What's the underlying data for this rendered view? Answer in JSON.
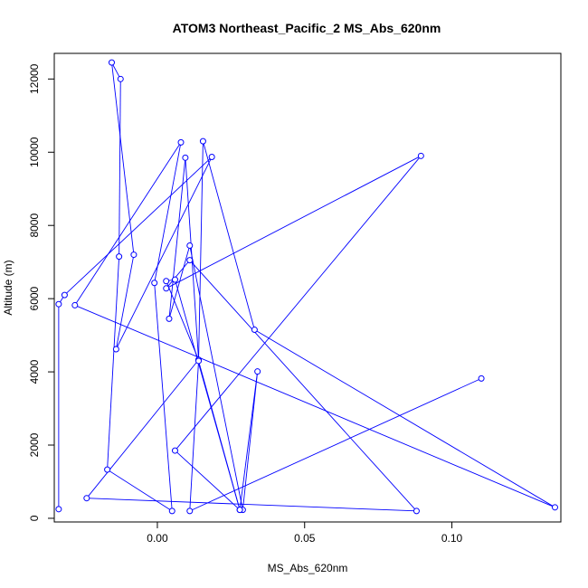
{
  "chart_data": {
    "type": "line",
    "title": "ATOM3 Northeast_Pacific_2 MS_Abs_620nm",
    "xlabel": "MS_Abs_620nm",
    "ylabel": "Altitude (m)",
    "xlim": [
      -0.035,
      0.137
    ],
    "ylim": [
      -100,
      12700
    ],
    "x_ticks": [
      0.0,
      0.05,
      0.1
    ],
    "x_tick_labels": [
      "0.00",
      "0.05",
      "0.10"
    ],
    "y_ticks": [
      0,
      2000,
      4000,
      6000,
      8000,
      10000,
      12000
    ],
    "y_tick_labels": [
      "0",
      "2000",
      "4000",
      "6000",
      "8000",
      "10000",
      "12000"
    ],
    "grid": false,
    "series": [
      {
        "color": "#0000ff",
        "marker": "open-circle",
        "points": [
          {
            "x": -0.0335,
            "y": 250
          },
          {
            "x": -0.0335,
            "y": 5850
          },
          {
            "x": -0.0315,
            "y": 6100
          },
          {
            "x": 0.0185,
            "y": 9870
          },
          {
            "x": -0.014,
            "y": 4620
          },
          {
            "x": -0.008,
            "y": 7200
          },
          {
            "x": -0.0155,
            "y": 12450
          },
          {
            "x": -0.0125,
            "y": 12000
          },
          {
            "x": -0.013,
            "y": 7150
          },
          {
            "x": -0.017,
            "y": 1330
          },
          {
            "x": 0.005,
            "y": 200
          },
          {
            "x": -0.001,
            "y": 6430
          },
          {
            "x": 0.008,
            "y": 10270
          },
          {
            "x": -0.028,
            "y": 5820
          },
          {
            "x": 0.135,
            "y": 300
          },
          {
            "x": 0.033,
            "y": 5150
          },
          {
            "x": 0.0155,
            "y": 10300
          },
          {
            "x": 0.014,
            "y": 4330
          },
          {
            "x": 0.0095,
            "y": 9850
          },
          {
            "x": 0.004,
            "y": 5450
          },
          {
            "x": 0.011,
            "y": 7450
          },
          {
            "x": 0.029,
            "y": 230
          },
          {
            "x": 0.034,
            "y": 4010
          },
          {
            "x": 0.028,
            "y": 230
          },
          {
            "x": 0.006,
            "y": 6520
          },
          {
            "x": 0.003,
            "y": 6480
          },
          {
            "x": 0.014,
            "y": 4330
          },
          {
            "x": -0.024,
            "y": 550
          },
          {
            "x": 0.088,
            "y": 200
          },
          {
            "x": 0.011,
            "y": 7050
          },
          {
            "x": 0.003,
            "y": 6280
          },
          {
            "x": 0.0895,
            "y": 9900
          },
          {
            "x": 0.006,
            "y": 1850
          },
          {
            "x": 0.028,
            "y": 230
          },
          {
            "x": 0.014,
            "y": 4300
          },
          {
            "x": 0.011,
            "y": 200
          },
          {
            "x": 0.11,
            "y": 3820
          }
        ]
      }
    ]
  }
}
